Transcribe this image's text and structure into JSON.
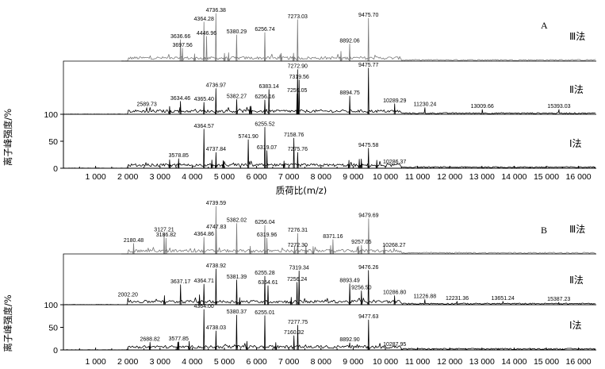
{
  "chart_data": {
    "type": "line",
    "xlabel": "质荷比(m/z)",
    "ylabel": "离子峰强度/%",
    "xlim": [
      0,
      16800
    ],
    "x_ticks": [
      "1 000",
      "2 000",
      "3 000",
      "4 000",
      "5 000",
      "6 000",
      "7 000",
      "8 000",
      "9 000",
      "10 000",
      "11 000",
      "12 000",
      "13 000",
      "14 000",
      "15 000",
      "16 000"
    ],
    "y_ticks": [
      "0",
      "50",
      "100"
    ],
    "panels": [
      {
        "label": "A",
        "series": [
          {
            "name": "Ⅲ法",
            "peaks": [
              {
                "mz": 3636.66,
                "h": 0.45
              },
              {
                "mz": 3697.56,
                "h": 0.27
              },
              {
                "mz": 4364.28,
                "h": 0.82
              },
              {
                "mz": 4446.96,
                "h": 0.52
              },
              {
                "mz": 4736.38,
                "h": 1.0
              },
              {
                "mz": 5380.29,
                "h": 0.55
              },
              {
                "mz": 6256.74,
                "h": 0.6
              },
              {
                "mz": 7273.03,
                "h": 0.87
              },
              {
                "mz": 8892.06,
                "h": 0.36
              },
              {
                "mz": 9475.7,
                "h": 0.9
              }
            ]
          },
          {
            "name": "Ⅱ法",
            "peaks": [
              {
                "mz": 2589.73,
                "h": 0.14
              },
              {
                "mz": 3634.46,
                "h": 0.27
              },
              {
                "mz": 4365.4,
                "h": 0.25
              },
              {
                "mz": 4736.97,
                "h": 0.54
              },
              {
                "mz": 5382.27,
                "h": 0.31
              },
              {
                "mz": 6256.16,
                "h": 0.3
              },
              {
                "mz": 6383.14,
                "h": 0.52
              },
              {
                "mz": 7259.05,
                "h": 0.43
              },
              {
                "mz": 7272.9,
                "h": 0.94
              },
              {
                "mz": 7319.56,
                "h": 0.72
              },
              {
                "mz": 8894.75,
                "h": 0.38
              },
              {
                "mz": 9475.77,
                "h": 0.97
              },
              {
                "mz": 10289.29,
                "h": 0.22
              },
              {
                "mz": 11230.24,
                "h": 0.14
              },
              {
                "mz": 13009.66,
                "h": 0.1
              },
              {
                "mz": 15393.03,
                "h": 0.1
              }
            ]
          },
          {
            "name": "Ⅰ法",
            "peaks": [
              {
                "mz": 3578.85,
                "h": 0.2
              },
              {
                "mz": 4364.57,
                "h": 0.82
              },
              {
                "mz": 4737.84,
                "h": 0.33
              },
              {
                "mz": 5741.9,
                "h": 0.6
              },
              {
                "mz": 6255.52,
                "h": 0.86
              },
              {
                "mz": 6319.07,
                "h": 0.37
              },
              {
                "mz": 7158.76,
                "h": 0.63
              },
              {
                "mz": 7275.76,
                "h": 0.33
              },
              {
                "mz": 9475.58,
                "h": 0.42
              },
              {
                "mz": 10286.37,
                "h": 0.07
              }
            ]
          }
        ]
      },
      {
        "label": "B",
        "series": [
          {
            "name": "Ⅲ法",
            "peaks": [
              {
                "mz": 2180.48,
                "h": 0.22
              },
              {
                "mz": 3127.21,
                "h": 0.44
              },
              {
                "mz": 3186.82,
                "h": 0.33
              },
              {
                "mz": 4364.86,
                "h": 0.35
              },
              {
                "mz": 4739.59,
                "h": 1.0
              },
              {
                "mz": 4747.83,
                "h": 0.5
              },
              {
                "mz": 5382.02,
                "h": 0.64
              },
              {
                "mz": 6256.04,
                "h": 0.6
              },
              {
                "mz": 6319.96,
                "h": 0.33
              },
              {
                "mz": 7276.31,
                "h": 0.43
              },
              {
                "mz": 7272.3,
                "h": 0.12
              },
              {
                "mz": 8371.16,
                "h": 0.3
              },
              {
                "mz": 9257.05,
                "h": 0.18
              },
              {
                "mz": 9479.69,
                "h": 0.74
              },
              {
                "mz": 10268.27,
                "h": 0.12
              }
            ]
          },
          {
            "name": "Ⅱ法",
            "peaks": [
              {
                "mz": 2002.2,
                "h": 0.14
              },
              {
                "mz": 3637.17,
                "h": 0.42
              },
              {
                "mz": 4364.71,
                "h": 0.43
              },
              {
                "mz": 4738.92,
                "h": 0.75
              },
              {
                "mz": 5381.39,
                "h": 0.52
              },
              {
                "mz": 6255.28,
                "h": 0.6
              },
              {
                "mz": 6354.61,
                "h": 0.4
              },
              {
                "mz": 7256.24,
                "h": 0.47
              },
              {
                "mz": 7319.34,
                "h": 0.71
              },
              {
                "mz": 8893.49,
                "h": 0.44
              },
              {
                "mz": 9256.5,
                "h": 0.29
              },
              {
                "mz": 9476.26,
                "h": 0.72
              },
              {
                "mz": 10286.8,
                "h": 0.19
              },
              {
                "mz": 11226.88,
                "h": 0.11
              },
              {
                "mz": 12231.36,
                "h": 0.07
              },
              {
                "mz": 13651.24,
                "h": 0.07
              },
              {
                "mz": 15387.23,
                "h": 0.05
              }
            ]
          },
          {
            "name": "Ⅰ法",
            "peaks": [
              {
                "mz": 2688.82,
                "h": 0.16
              },
              {
                "mz": 3577.85,
                "h": 0.17
              },
              {
                "mz": 4364.0,
                "h": 0.85
              },
              {
                "mz": 4738.03,
                "h": 0.4
              },
              {
                "mz": 5380.37,
                "h": 0.73
              },
              {
                "mz": 6255.01,
                "h": 0.72
              },
              {
                "mz": 7160.32,
                "h": 0.3
              },
              {
                "mz": 7277.75,
                "h": 0.52
              },
              {
                "mz": 8892.9,
                "h": 0.15
              },
              {
                "mz": 9477.63,
                "h": 0.63
              },
              {
                "mz": 10287.95,
                "h": 0.05
              }
            ]
          }
        ]
      }
    ]
  }
}
